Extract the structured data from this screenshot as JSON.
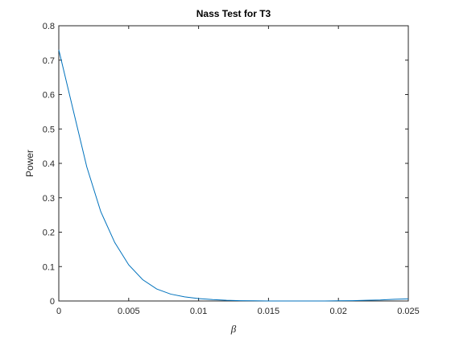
{
  "chart_data": {
    "type": "line",
    "title": "Nass Test for T3",
    "x_label": "β",
    "y_label": "Power",
    "x": [
      0,
      0.001,
      0.002,
      0.003,
      0.004,
      0.005,
      0.006,
      0.007,
      0.008,
      0.009,
      0.01,
      0.011,
      0.012,
      0.013,
      0.014,
      0.015,
      0.016,
      0.017,
      0.018,
      0.019,
      0.02,
      0.021,
      0.022,
      0.023,
      0.024,
      0.025
    ],
    "series": [
      {
        "name": "Power",
        "color": "#0072bd",
        "values": [
          0.73,
          0.56,
          0.39,
          0.26,
          0.17,
          0.105,
          0.062,
          0.035,
          0.02,
          0.012,
          0.007,
          0.004,
          0.002,
          0.001,
          0.0005,
          0,
          0,
          0,
          0,
          0,
          0.0005,
          0.001,
          0.002,
          0.003,
          0.005,
          0.006
        ]
      }
    ],
    "xlim": [
      0,
      0.025
    ],
    "xticks": [
      0,
      0.005,
      0.01,
      0.015,
      0.02,
      0.025
    ],
    "ylim": [
      0,
      0.8
    ],
    "yticks": [
      0,
      0.1,
      0.2,
      0.3,
      0.4,
      0.5,
      0.6,
      0.7,
      0.8
    ],
    "grid": false
  }
}
